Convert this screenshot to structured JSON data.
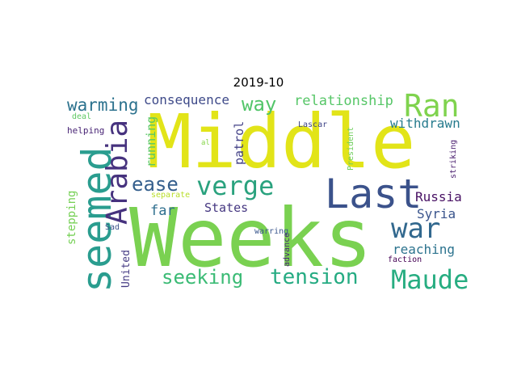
{
  "title": "2019-10",
  "words": [
    {
      "text": "Middle",
      "color": "#e2e418",
      "vertical": false
    },
    {
      "text": "Weeks",
      "color": "#7ad151",
      "vertical": false
    },
    {
      "text": "seemed",
      "color": "#2a9d8f",
      "vertical": true
    },
    {
      "text": "Arabia",
      "color": "#46327e",
      "vertical": true
    },
    {
      "text": "Last",
      "color": "#3b528b",
      "vertical": false
    },
    {
      "text": "verge",
      "color": "#2aa27e",
      "vertical": false
    },
    {
      "text": "Ran",
      "color": "#7fd34e",
      "vertical": false
    },
    {
      "text": "war",
      "color": "#31688e",
      "vertical": false
    },
    {
      "text": "Maude",
      "color": "#27ad81",
      "vertical": false
    },
    {
      "text": "tension",
      "color": "#25ab82",
      "vertical": false
    },
    {
      "text": "seeking",
      "color": "#3bbb75",
      "vertical": false
    },
    {
      "text": "ease",
      "color": "#355f8d",
      "vertical": false
    },
    {
      "text": "way",
      "color": "#52c569",
      "vertical": false
    },
    {
      "text": "warming",
      "color": "#2c728e",
      "vertical": false
    },
    {
      "text": "consequence",
      "color": "#3e4a89",
      "vertical": false
    },
    {
      "text": "relationship",
      "color": "#56c667",
      "vertical": false
    },
    {
      "text": "withdrawn",
      "color": "#287c8e",
      "vertical": false
    },
    {
      "text": "Russia",
      "color": "#471063",
      "vertical": false
    },
    {
      "text": "Syria",
      "color": "#3a548c",
      "vertical": false
    },
    {
      "text": "reaching",
      "color": "#2c738e",
      "vertical": false
    },
    {
      "text": "far",
      "color": "#2e6e8e",
      "vertical": false
    },
    {
      "text": "States",
      "color": "#453781",
      "vertical": false
    },
    {
      "text": "running",
      "color": "#5ac864",
      "vertical": true
    },
    {
      "text": "patrol",
      "color": "#424086",
      "vertical": true
    },
    {
      "text": "stepping",
      "color": "#75d054",
      "vertical": true
    },
    {
      "text": "United",
      "color": "#443a83",
      "vertical": true
    },
    {
      "text": "helping",
      "color": "#482475",
      "vertical": false
    },
    {
      "text": "deal",
      "color": "#5ec962",
      "vertical": false
    },
    {
      "text": "al",
      "color": "#86d549",
      "vertical": false
    },
    {
      "text": "separate",
      "color": "#b8de29",
      "vertical": false
    },
    {
      "text": "Sad",
      "color": "#3b528b",
      "vertical": false
    },
    {
      "text": "warring",
      "color": "#39568c",
      "vertical": false
    },
    {
      "text": "advance",
      "color": "#482878",
      "vertical": true
    },
    {
      "text": "Lascar",
      "color": "#404688",
      "vertical": false
    },
    {
      "text": "President",
      "color": "#6ccd5a",
      "vertical": true
    },
    {
      "text": "striking",
      "color": "#481c6e",
      "vertical": true
    },
    {
      "text": "faction",
      "color": "#440154",
      "vertical": false
    }
  ]
}
